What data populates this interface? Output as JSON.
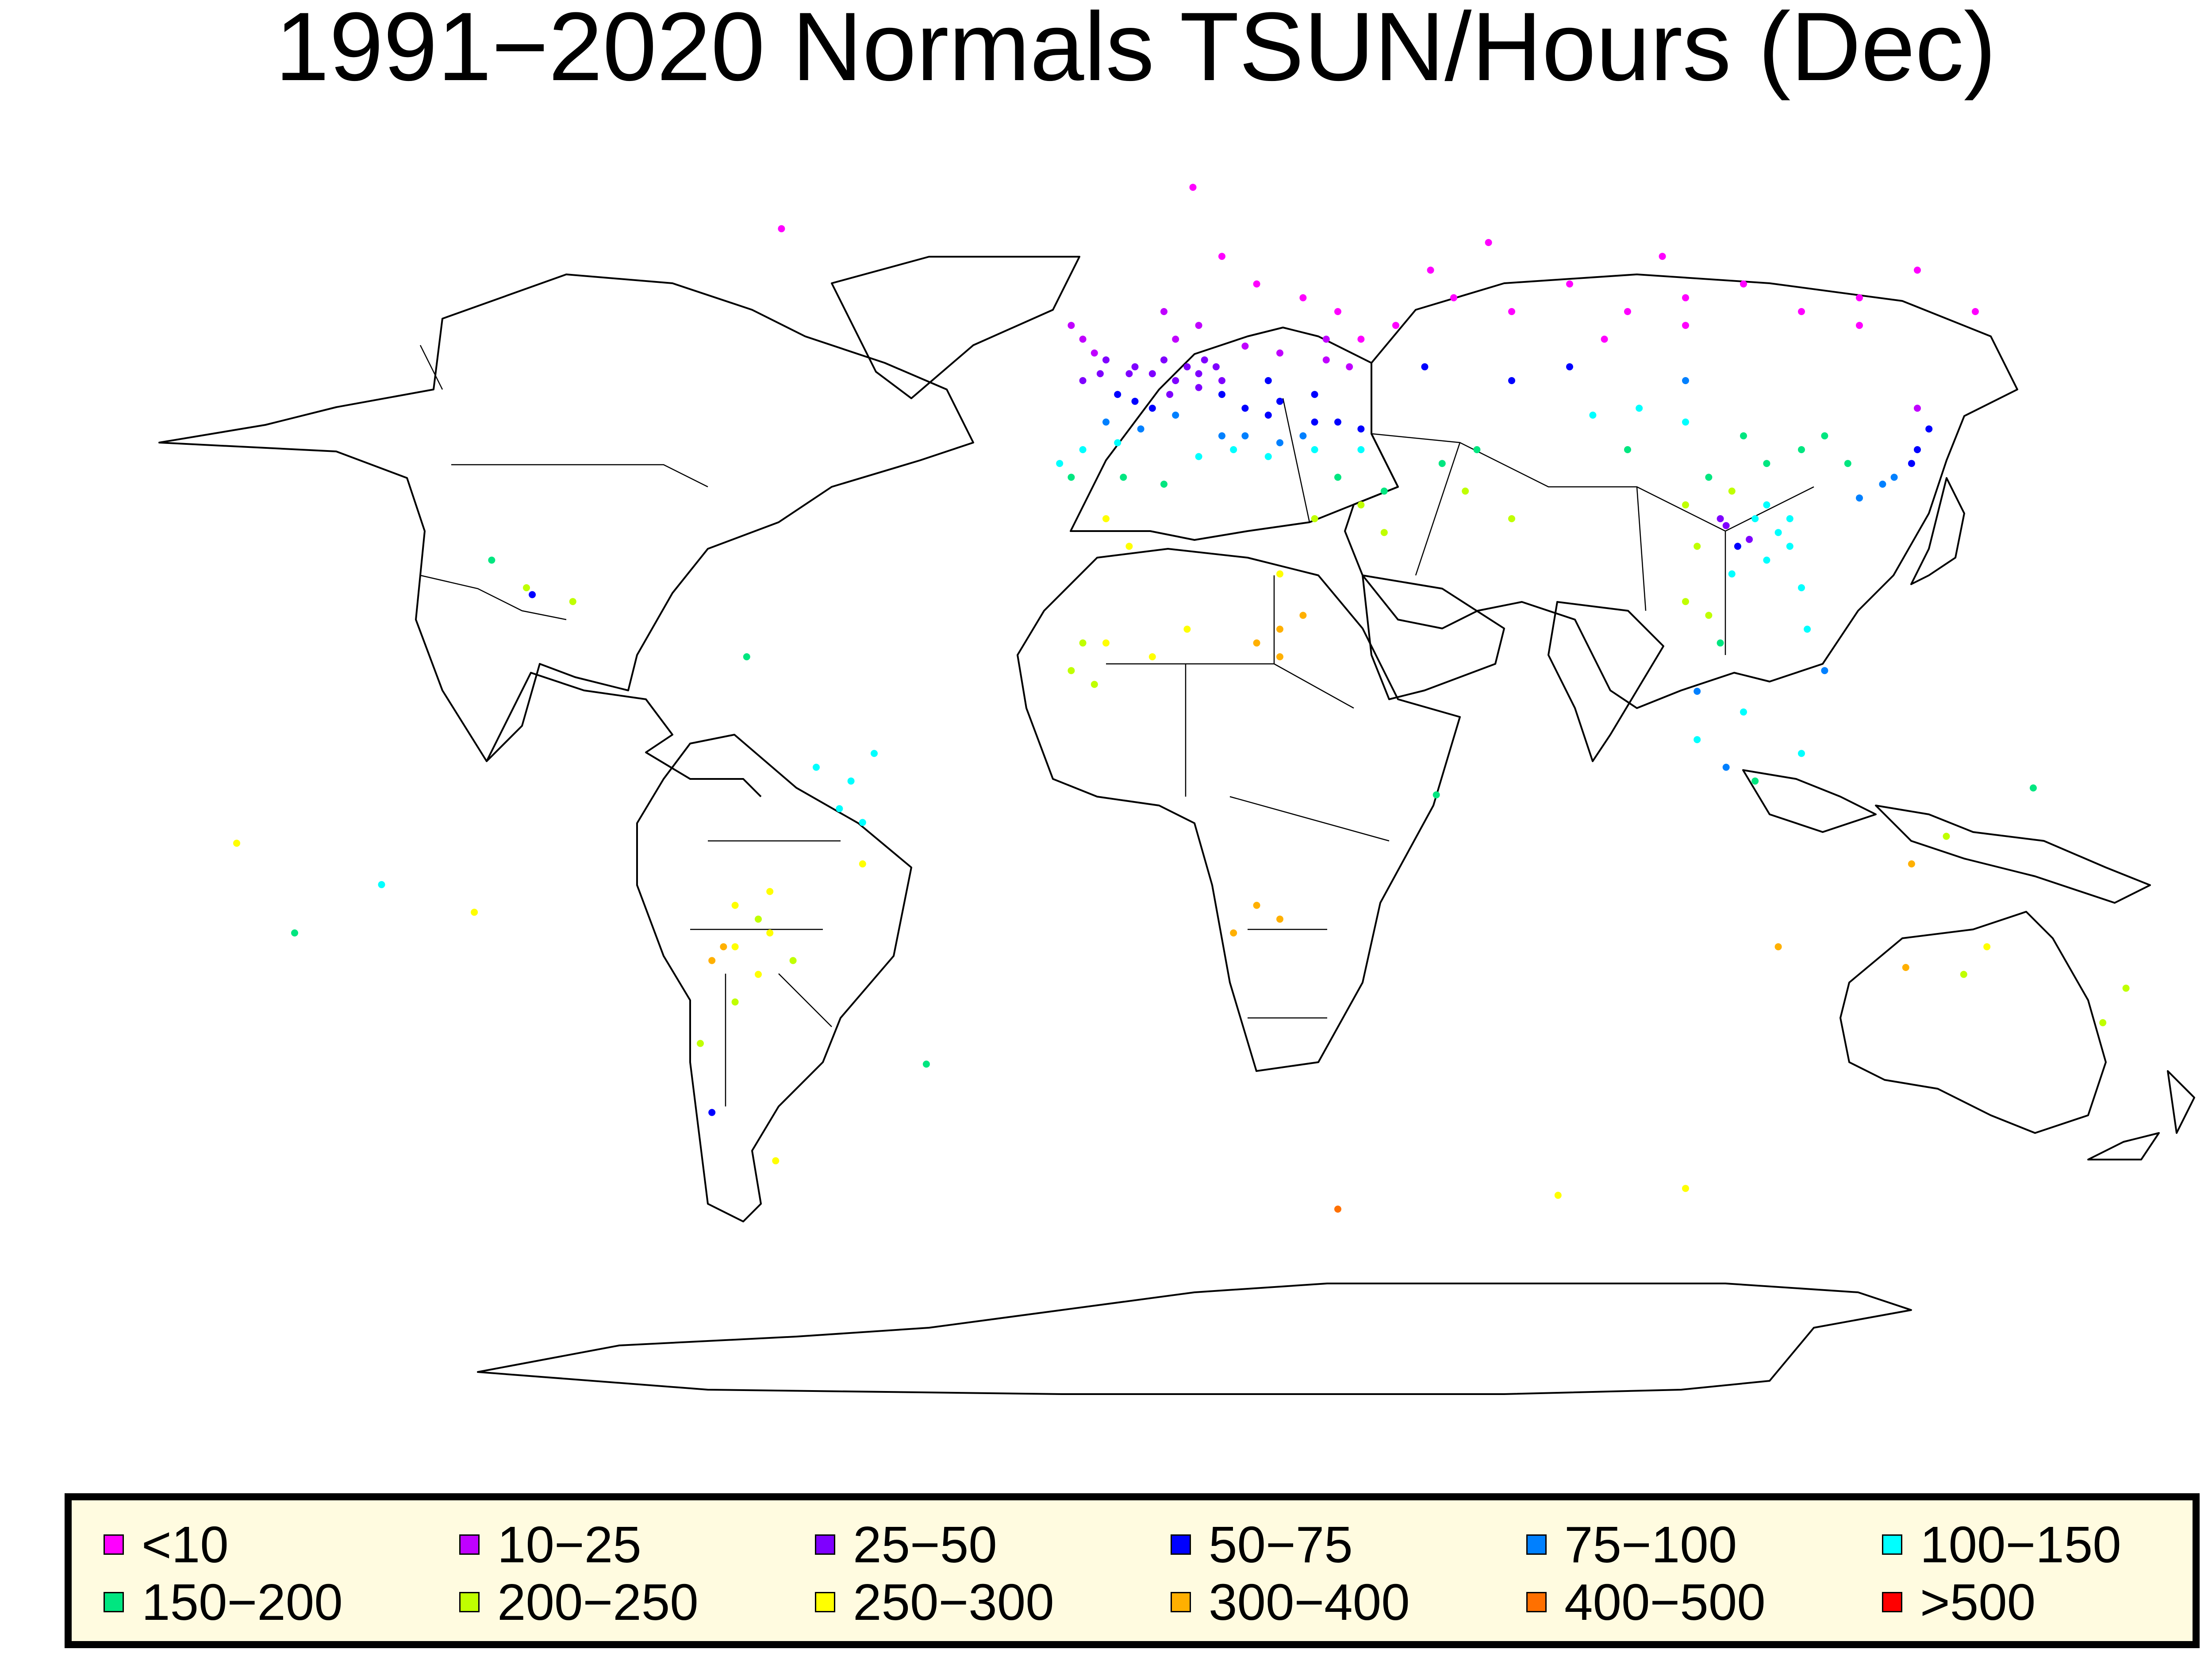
{
  "title": "1991−2020 Normals TSUN/Hours (Dec)",
  "legend": [
    {
      "label": "<10",
      "color": "#ff00ff"
    },
    {
      "label": "10−25",
      "color": "#c000ff"
    },
    {
      "label": "25−50",
      "color": "#7f00ff"
    },
    {
      "label": "50−75",
      "color": "#0000ff"
    },
    {
      "label": "75−100",
      "color": "#0080ff"
    },
    {
      "label": "100−150",
      "color": "#00ffff"
    },
    {
      "label": "150−200",
      "color": "#00e680"
    },
    {
      "label": "200−250",
      "color": "#c0ff00"
    },
    {
      "label": "250−300",
      "color": "#ffff00"
    },
    {
      "label": "300−400",
      "color": "#ffb000"
    },
    {
      "label": "400−500",
      "color": "#ff7000"
    },
    {
      "label": ">500",
      "color": "#ff0000"
    }
  ],
  "stations": [
    {
      "lat": 68,
      "lon": 20,
      "c": 0
    },
    {
      "lat": 64,
      "lon": 26,
      "c": 0
    },
    {
      "lat": 62,
      "lon": 34,
      "c": 0
    },
    {
      "lat": 60,
      "lon": 40,
      "c": 0
    },
    {
      "lat": 58,
      "lon": 50,
      "c": 0
    },
    {
      "lat": 62,
      "lon": 60,
      "c": 0
    },
    {
      "lat": 60,
      "lon": 70,
      "c": 0
    },
    {
      "lat": 64,
      "lon": 80,
      "c": 0
    },
    {
      "lat": 60,
      "lon": 90,
      "c": 0
    },
    {
      "lat": 62,
      "lon": 100,
      "c": 0
    },
    {
      "lat": 64,
      "lon": 110,
      "c": 0
    },
    {
      "lat": 60,
      "lon": 120,
      "c": 0
    },
    {
      "lat": 62,
      "lon": 130,
      "c": 0
    },
    {
      "lat": 66,
      "lon": 140,
      "c": 0
    },
    {
      "lat": 56,
      "lon": 44,
      "c": 0
    },
    {
      "lat": 66,
      "lon": 56,
      "c": 0
    },
    {
      "lat": 70,
      "lon": 66,
      "c": 0
    },
    {
      "lat": 58,
      "lon": 100,
      "c": 0
    },
    {
      "lat": 56,
      "lon": 86,
      "c": 0
    },
    {
      "lat": 68,
      "lon": 96,
      "c": 0
    },
    {
      "lat": 58,
      "lon": 130,
      "c": 0
    },
    {
      "lat": 60,
      "lon": 150,
      "c": 0
    },
    {
      "lat": 78,
      "lon": 15,
      "c": 0
    },
    {
      "lat": 72,
      "lon": -56,
      "c": 0
    },
    {
      "lat": 60,
      "lon": 10,
      "c": 1
    },
    {
      "lat": 58,
      "lon": 16,
      "c": 1
    },
    {
      "lat": 56,
      "lon": 12,
      "c": 1
    },
    {
      "lat": 56,
      "lon": -4,
      "c": 1
    },
    {
      "lat": 54,
      "lon": -2,
      "c": 1
    },
    {
      "lat": 58,
      "lon": -6,
      "c": 1
    },
    {
      "lat": 55,
      "lon": 24,
      "c": 1
    },
    {
      "lat": 54,
      "lon": 30,
      "c": 1
    },
    {
      "lat": 56,
      "lon": 38,
      "c": 1
    },
    {
      "lat": 53,
      "lon": 38,
      "c": 1
    },
    {
      "lat": 52,
      "lon": 42,
      "c": 1
    },
    {
      "lat": 46,
      "lon": 140,
      "c": 1
    },
    {
      "lat": 53,
      "lon": 10,
      "c": 2
    },
    {
      "lat": 52,
      "lon": 14,
      "c": 2
    },
    {
      "lat": 51,
      "lon": 8,
      "c": 2
    },
    {
      "lat": 50,
      "lon": 12,
      "c": 2
    },
    {
      "lat": 52,
      "lon": 5,
      "c": 2
    },
    {
      "lat": 51,
      "lon": 4,
      "c": 2
    },
    {
      "lat": 52,
      "lon": 19,
      "c": 2
    },
    {
      "lat": 50,
      "lon": 20,
      "c": 2
    },
    {
      "lat": 49,
      "lon": 16,
      "c": 2
    },
    {
      "lat": 53,
      "lon": 0,
      "c": 2
    },
    {
      "lat": 51,
      "lon": -1,
      "c": 2
    },
    {
      "lat": 50,
      "lon": -4,
      "c": 2
    },
    {
      "lat": 53,
      "lon": 17,
      "c": 2
    },
    {
      "lat": 51,
      "lon": 16,
      "c": 2
    },
    {
      "lat": 48,
      "lon": 11,
      "c": 2
    },
    {
      "lat": 27,
      "lon": 111,
      "c": 2
    },
    {
      "lat": 30,
      "lon": 106,
      "c": 2
    },
    {
      "lat": 29,
      "lon": 107,
      "c": 2
    },
    {
      "lat": 48,
      "lon": 2,
      "c": 3
    },
    {
      "lat": 47,
      "lon": 5,
      "c": 3
    },
    {
      "lat": 46,
      "lon": 8,
      "c": 3
    },
    {
      "lat": 48,
      "lon": 20,
      "c": 3
    },
    {
      "lat": 46,
      "lon": 24,
      "c": 3
    },
    {
      "lat": 47,
      "lon": 30,
      "c": 3
    },
    {
      "lat": 48,
      "lon": 36,
      "c": 3
    },
    {
      "lat": 44,
      "lon": 40,
      "c": 3
    },
    {
      "lat": 43,
      "lon": 44,
      "c": 3
    },
    {
      "lat": 50,
      "lon": 28,
      "c": 3
    },
    {
      "lat": 45,
      "lon": 28,
      "c": 3
    },
    {
      "lat": 44,
      "lon": 36,
      "c": 3
    },
    {
      "lat": 52,
      "lon": 55,
      "c": 3
    },
    {
      "lat": 50,
      "lon": 70,
      "c": 3
    },
    {
      "lat": 52,
      "lon": 80,
      "c": 3
    },
    {
      "lat": 43,
      "lon": 142,
      "c": 3
    },
    {
      "lat": 40,
      "lon": 140,
      "c": 3
    },
    {
      "lat": 38,
      "lon": 139,
      "c": 3
    },
    {
      "lat": 26,
      "lon": 109,
      "c": 3
    },
    {
      "lat": 19,
      "lon": -99,
      "c": 3
    },
    {
      "lat": -56,
      "lon": -68,
      "c": 3
    },
    {
      "lat": 44,
      "lon": 0,
      "c": 4
    },
    {
      "lat": 43,
      "lon": 6,
      "c": 4
    },
    {
      "lat": 45,
      "lon": 12,
      "c": 4
    },
    {
      "lat": 42,
      "lon": 20,
      "c": 4
    },
    {
      "lat": 42,
      "lon": 24,
      "c": 4
    },
    {
      "lat": 41,
      "lon": 30,
      "c": 4
    },
    {
      "lat": 42,
      "lon": 34,
      "c": 4
    },
    {
      "lat": 36,
      "lon": 136,
      "c": 4
    },
    {
      "lat": 35,
      "lon": 134,
      "c": 4
    },
    {
      "lat": 33,
      "lon": 130,
      "c": 4
    },
    {
      "lat": 5,
      "lon": 102,
      "c": 4
    },
    {
      "lat": -6,
      "lon": 107,
      "c": 4
    },
    {
      "lat": 8,
      "lon": 124,
      "c": 4
    },
    {
      "lat": 50,
      "lon": 100,
      "c": 4
    },
    {
      "lat": 40,
      "lon": -4,
      "c": 5
    },
    {
      "lat": 38,
      "lon": -8,
      "c": 5
    },
    {
      "lat": 41,
      "lon": 2,
      "c": 5
    },
    {
      "lat": 39,
      "lon": 16,
      "c": 5
    },
    {
      "lat": 40,
      "lon": 22,
      "c": 5
    },
    {
      "lat": 39,
      "lon": 28,
      "c": 5
    },
    {
      "lat": 40,
      "lon": 36,
      "c": 5
    },
    {
      "lat": 40,
      "lon": 44,
      "c": 5
    },
    {
      "lat": 45,
      "lon": 84,
      "c": 5
    },
    {
      "lat": 46,
      "lon": 92,
      "c": 5
    },
    {
      "lat": 44,
      "lon": 100,
      "c": 5
    },
    {
      "lat": 30,
      "lon": 118,
      "c": 5
    },
    {
      "lat": 32,
      "lon": 114,
      "c": 5
    },
    {
      "lat": 28,
      "lon": 116,
      "c": 5
    },
    {
      "lat": 24,
      "lon": 114,
      "c": 5
    },
    {
      "lat": 26,
      "lon": 118,
      "c": 5
    },
    {
      "lat": 30,
      "lon": 112,
      "c": 5
    },
    {
      "lat": 22,
      "lon": 108,
      "c": 5
    },
    {
      "lat": -4,
      "lon": -40,
      "c": 5
    },
    {
      "lat": -8,
      "lon": -44,
      "c": 5
    },
    {
      "lat": -12,
      "lon": -46,
      "c": 5
    },
    {
      "lat": -6,
      "lon": -50,
      "c": 5
    },
    {
      "lat": -14,
      "lon": -42,
      "c": 5
    },
    {
      "lat": 2,
      "lon": 110,
      "c": 5
    },
    {
      "lat": -2,
      "lon": 102,
      "c": 5
    },
    {
      "lat": -4,
      "lon": 120,
      "c": 5
    },
    {
      "lat": 14,
      "lon": 121,
      "c": 5
    },
    {
      "lat": -23,
      "lon": -125,
      "c": 5
    },
    {
      "lat": 20,
      "lon": 120,
      "c": 5
    },
    {
      "lat": 36,
      "lon": -6,
      "c": 6
    },
    {
      "lat": 36,
      "lon": 3,
      "c": 6
    },
    {
      "lat": 35,
      "lon": 10,
      "c": 6
    },
    {
      "lat": 36,
      "lon": 40,
      "c": 6
    },
    {
      "lat": 34,
      "lon": 48,
      "c": 6
    },
    {
      "lat": 38,
      "lon": 58,
      "c": 6
    },
    {
      "lat": 40,
      "lon": 64,
      "c": 6
    },
    {
      "lat": 40,
      "lon": 90,
      "c": 6
    },
    {
      "lat": 42,
      "lon": 110,
      "c": 6
    },
    {
      "lat": 38,
      "lon": 114,
      "c": 6
    },
    {
      "lat": 40,
      "lon": 120,
      "c": 6
    },
    {
      "lat": 42,
      "lon": 124,
      "c": 6
    },
    {
      "lat": 36,
      "lon": 104,
      "c": 6
    },
    {
      "lat": 38,
      "lon": 128,
      "c": 6
    },
    {
      "lat": 24,
      "lon": -106,
      "c": 6
    },
    {
      "lat": 10,
      "lon": -62,
      "c": 6
    },
    {
      "lat": 12,
      "lon": 106,
      "c": 6
    },
    {
      "lat": -8,
      "lon": 112,
      "c": 6
    },
    {
      "lat": -30,
      "lon": -140,
      "c": 6
    },
    {
      "lat": -49,
      "lon": -31,
      "c": 6
    },
    {
      "lat": -10,
      "lon": 57,
      "c": 6
    },
    {
      "lat": -9,
      "lon": 160,
      "c": 6
    },
    {
      "lat": 32,
      "lon": 44,
      "c": 7
    },
    {
      "lat": 28,
      "lon": 48,
      "c": 7
    },
    {
      "lat": 30,
      "lon": 36,
      "c": 7
    },
    {
      "lat": 34,
      "lon": 62,
      "c": 7
    },
    {
      "lat": 30,
      "lon": 70,
      "c": 7
    },
    {
      "lat": 32,
      "lon": 100,
      "c": 7
    },
    {
      "lat": 34,
      "lon": 108,
      "c": 7
    },
    {
      "lat": 26,
      "lon": 102,
      "c": 7
    },
    {
      "lat": 18,
      "lon": 100,
      "c": 7
    },
    {
      "lat": 16,
      "lon": 104,
      "c": 7
    },
    {
      "lat": 20,
      "lon": -100,
      "c": 7
    },
    {
      "lat": 18,
      "lon": -92,
      "c": 7
    },
    {
      "lat": 12,
      "lon": -4,
      "c": 7
    },
    {
      "lat": 8,
      "lon": -6,
      "c": 7
    },
    {
      "lat": 6,
      "lon": -2,
      "c": 7
    },
    {
      "lat": -28,
      "lon": -60,
      "c": 7
    },
    {
      "lat": -34,
      "lon": -54,
      "c": 7
    },
    {
      "lat": -40,
      "lon": -64,
      "c": 7
    },
    {
      "lat": -46,
      "lon": -70,
      "c": 7
    },
    {
      "lat": -36,
      "lon": 148,
      "c": 7
    },
    {
      "lat": -43,
      "lon": 172,
      "c": 7
    },
    {
      "lat": -38,
      "lon": 176,
      "c": 7
    },
    {
      "lat": -16,
      "lon": 145,
      "c": 7
    },
    {
      "lat": 30,
      "lon": 0,
      "c": 8
    },
    {
      "lat": 26,
      "lon": 4,
      "c": 8
    },
    {
      "lat": 22,
      "lon": 30,
      "c": 8
    },
    {
      "lat": 12,
      "lon": 0,
      "c": 8
    },
    {
      "lat": 10,
      "lon": 8,
      "c": 8
    },
    {
      "lat": 14,
      "lon": 14,
      "c": 8
    },
    {
      "lat": -26,
      "lon": -64,
      "c": 8
    },
    {
      "lat": -32,
      "lon": -64,
      "c": 8
    },
    {
      "lat": -30,
      "lon": -58,
      "c": 8
    },
    {
      "lat": -24,
      "lon": -58,
      "c": 8
    },
    {
      "lat": -36,
      "lon": -60,
      "c": 8
    },
    {
      "lat": -20,
      "lon": -42,
      "c": 8
    },
    {
      "lat": -27,
      "lon": -109,
      "c": 8
    },
    {
      "lat": -17,
      "lon": -150,
      "c": 8
    },
    {
      "lat": -32,
      "lon": 152,
      "c": 8
    },
    {
      "lat": -63,
      "lon": -57,
      "c": 8
    },
    {
      "lat": -67,
      "lon": 100,
      "c": 8
    },
    {
      "lat": -68,
      "lon": 78,
      "c": 8
    },
    {
      "lat": 14,
      "lon": 30,
      "c": 9
    },
    {
      "lat": 12,
      "lon": 26,
      "c": 9
    },
    {
      "lat": 16,
      "lon": 34,
      "c": 9
    },
    {
      "lat": 10,
      "lon": 30,
      "c": 9
    },
    {
      "lat": -26,
      "lon": 26,
      "c": 9
    },
    {
      "lat": -30,
      "lon": 22,
      "c": 9
    },
    {
      "lat": -28,
      "lon": 30,
      "c": 9
    },
    {
      "lat": -32,
      "lon": -66,
      "c": 9
    },
    {
      "lat": -34,
      "lon": -68,
      "c": 9
    },
    {
      "lat": -20,
      "lon": 139,
      "c": 9
    },
    {
      "lat": -32,
      "lon": 116,
      "c": 9
    },
    {
      "lat": -35,
      "lon": 138,
      "c": 9
    },
    {
      "lat": -70,
      "lon": 40,
      "c": 10
    }
  ]
}
